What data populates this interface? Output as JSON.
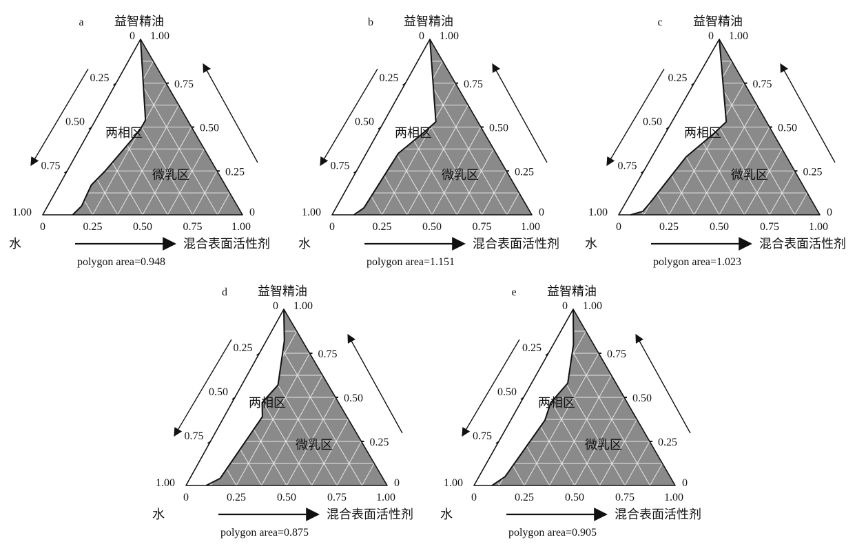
{
  "figure": {
    "axis_labels": {
      "top": "益智精油",
      "bottom_left": "水",
      "bottom_right": "混合表面活性剂"
    },
    "left_ticks": [
      "0.25",
      "0.50",
      "0.75"
    ],
    "right_ticks": [
      "0.75",
      "0.50",
      "0.25"
    ],
    "bottom_ticks": [
      "0.25",
      "0.50",
      "0.75"
    ],
    "corner_labels": {
      "apex_left": "0",
      "apex_right": "1.00",
      "left_corner": "1.00",
      "right_corner_side": "0",
      "bottom_start": "0",
      "bottom_end": "1.00"
    },
    "region_labels": {
      "two_phase": "两相区",
      "microemulsion": "微乳区"
    },
    "colors": {
      "region_fill": "#8a8a8a",
      "grid_line": "#e8e8e8",
      "outline": "#111111"
    }
  },
  "chart_data": [
    {
      "type": "ternary-phase-diagram",
      "panel": "a",
      "caption": "polygon area=0.948",
      "boundary": [
        {
          "surfactant": 0.0,
          "oil": 1.0
        },
        {
          "surfactant": 0.25,
          "oil": 0.54
        },
        {
          "surfactant": 0.25,
          "oil": 0.48
        },
        {
          "surfactant": 0.19,
          "oil": 0.25
        },
        {
          "surfactant": 0.16,
          "oil": 0.17
        },
        {
          "surfactant": 0.17,
          "oil": 0.05
        },
        {
          "surfactant": 0.15,
          "oil": 0.0
        }
      ]
    },
    {
      "type": "ternary-phase-diagram",
      "panel": "b",
      "caption": "polygon area=1.151",
      "boundary": [
        {
          "surfactant": 0.0,
          "oil": 1.0
        },
        {
          "surfactant": 0.26,
          "oil": 0.53
        },
        {
          "surfactant": 0.23,
          "oil": 0.47
        },
        {
          "surfactant": 0.16,
          "oil": 0.35
        },
        {
          "surfactant": 0.14,
          "oil": 0.04
        },
        {
          "surfactant": 0.11,
          "oil": 0.0
        }
      ]
    },
    {
      "type": "ternary-phase-diagram",
      "panel": "c",
      "caption": "polygon area=1.023",
      "boundary": [
        {
          "surfactant": 0.0,
          "oil": 1.0
        },
        {
          "surfactant": 0.27,
          "oil": 0.53
        },
        {
          "surfactant": 0.24,
          "oil": 0.46
        },
        {
          "surfactant": 0.17,
          "oil": 0.33
        },
        {
          "surfactant": 0.12,
          "oil": 0.06
        },
        {
          "surfactant": 0.11,
          "oil": 0.02
        },
        {
          "surfactant": 0.06,
          "oil": 0.0
        }
      ]
    },
    {
      "type": "ternary-phase-diagram",
      "panel": "d",
      "caption": "polygon area=0.875",
      "boundary": [
        {
          "surfactant": 0.0,
          "oil": 1.0
        },
        {
          "surfactant": 0.09,
          "oil": 0.82
        },
        {
          "surfactant": 0.18,
          "oil": 0.57
        },
        {
          "surfactant": 0.15,
          "oil": 0.47
        },
        {
          "surfactant": 0.19,
          "oil": 0.39
        },
        {
          "surfactant": 0.15,
          "oil": 0.04
        },
        {
          "surfactant": 0.1,
          "oil": 0.0
        }
      ]
    },
    {
      "type": "ternary-phase-diagram",
      "panel": "e",
      "caption": "polygon area=0.905",
      "boundary": [
        {
          "surfactant": 0.0,
          "oil": 1.0
        },
        {
          "surfactant": 0.1,
          "oil": 0.8
        },
        {
          "surfactant": 0.18,
          "oil": 0.58
        },
        {
          "surfactant": 0.15,
          "oil": 0.47
        },
        {
          "surfactant": 0.17,
          "oil": 0.37
        },
        {
          "surfactant": 0.13,
          "oil": 0.05
        },
        {
          "surfactant": 0.09,
          "oil": 0.0
        }
      ]
    }
  ]
}
